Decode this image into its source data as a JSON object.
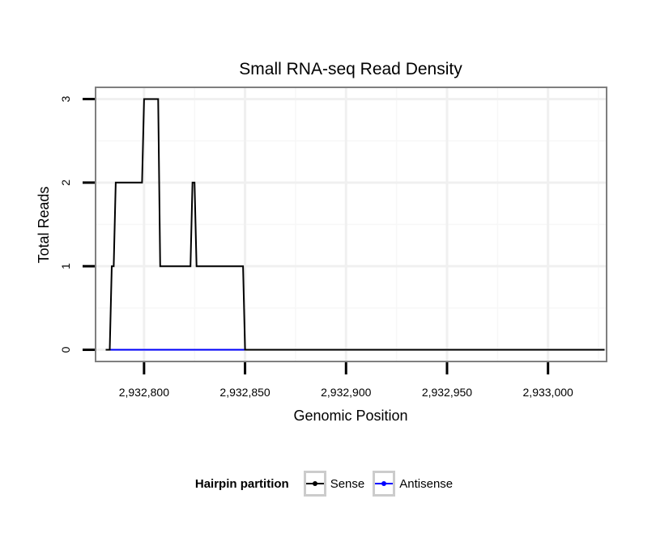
{
  "chart_data": {
    "type": "line",
    "title": "Small RNA-seq Read Density",
    "xlabel": "Genomic Position",
    "ylabel": "Total Reads",
    "xlim": [
      2932776,
      2933029
    ],
    "ylim": [
      -0.14,
      3.14
    ],
    "x_ticks": [
      2932800,
      2932850,
      2932900,
      2932950,
      2933000
    ],
    "x_tick_labels": [
      "2,932,800",
      "2,932,850",
      "2,932,900",
      "2,932,950",
      "2,933,000"
    ],
    "y_ticks": [
      0,
      1,
      2,
      3
    ],
    "y_tick_labels": [
      "0",
      "1",
      "2",
      "3"
    ],
    "grid": true,
    "legend": {
      "title": "Hairpin partition",
      "position": "bottom",
      "entries": [
        {
          "name": "Sense",
          "color": "#000000"
        },
        {
          "name": "Antisense",
          "color": "#0000ff"
        }
      ]
    },
    "series": [
      {
        "name": "Sense",
        "color": "#000000",
        "x": [
          2932781,
          2932783,
          2932784,
          2932785,
          2932786,
          2932799,
          2932800,
          2932807,
          2932808,
          2932823,
          2932824,
          2932825,
          2932826,
          2932849,
          2932850,
          2933028
        ],
        "y": [
          0,
          0,
          1,
          1,
          2,
          2,
          3,
          3,
          1,
          1,
          2,
          2,
          1,
          1,
          0,
          0
        ]
      },
      {
        "name": "Antisense",
        "color": "#0000ff",
        "x": [
          2932783,
          2932850
        ],
        "y": [
          0,
          0
        ]
      }
    ]
  }
}
